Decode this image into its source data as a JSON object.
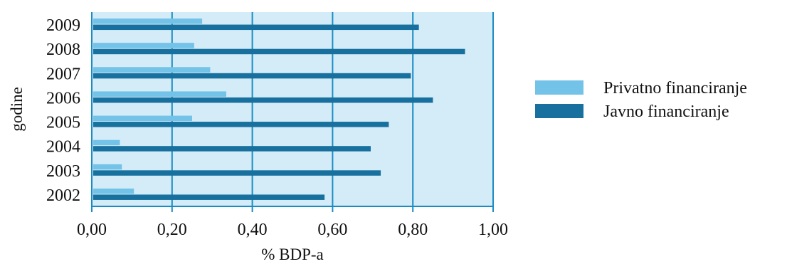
{
  "chart_data": {
    "type": "bar",
    "orientation": "horizontal",
    "categories": [
      "2009",
      "2008",
      "2007",
      "2006",
      "2005",
      "2004",
      "2003",
      "2002"
    ],
    "series": [
      {
        "name": "Privatno financiranje",
        "color": "#73c2e8",
        "values": [
          0.275,
          0.255,
          0.295,
          0.335,
          0.25,
          0.07,
          0.075,
          0.105
        ]
      },
      {
        "name": "Javno financiranje",
        "color": "#17709e",
        "values": [
          0.815,
          0.93,
          0.795,
          0.85,
          0.74,
          0.695,
          0.72,
          0.58
        ]
      }
    ],
    "xlim": [
      0,
      1
    ],
    "xticks": [
      "0,00",
      "0,20",
      "0,40",
      "0,60",
      "0,80",
      "1,00"
    ],
    "xlabel": "% BDP-a",
    "ylabel": "godine",
    "legend_position": "right",
    "grid": "vertical",
    "plot_background": "#d4ecf7",
    "gridline_color": "#1a8cc4"
  }
}
